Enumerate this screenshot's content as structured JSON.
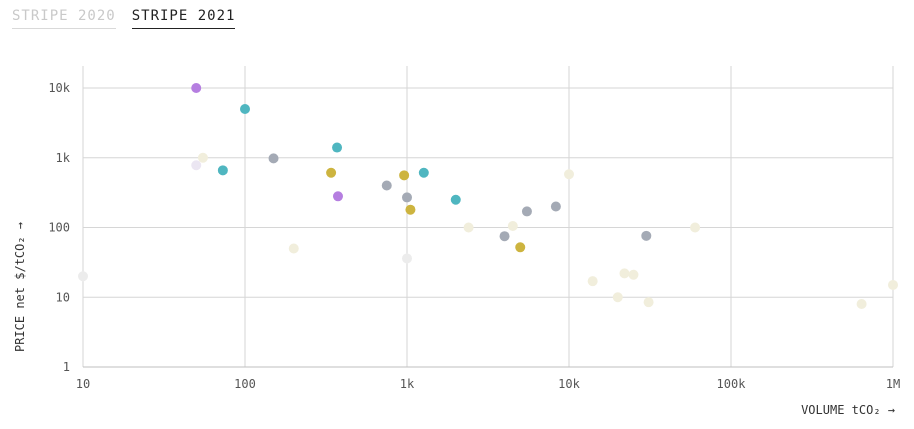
{
  "tabs": [
    {
      "label": "STRIPE 2020",
      "active": false
    },
    {
      "label": "STRIPE 2021",
      "active": true
    }
  ],
  "chart_data": {
    "type": "scatter",
    "x_scale": "log",
    "y_scale": "log",
    "xlim": [
      10,
      1000000
    ],
    "ylim": [
      1,
      20000
    ],
    "xticks": [
      10,
      100,
      1000,
      10000,
      100000,
      1000000
    ],
    "xtick_labels": [
      "10",
      "100",
      "1k",
      "10k",
      "100k",
      "1M"
    ],
    "yticks": [
      1,
      10,
      100,
      1000,
      10000
    ],
    "ytick_labels": [
      "1",
      "10",
      "100",
      "1k",
      "10k"
    ],
    "xlabel": "VOLUME tCO₂ →",
    "ylabel": "PRICE net $/tCO₂ →",
    "grid": true,
    "colors": {
      "purple": "#b57ee0",
      "teal": "#4fb6c0",
      "gray": "#a4aab5",
      "gold": "#cdb43f",
      "faded_cream": "#f1eedc",
      "faded_lavender": "#ebe6f2",
      "faded_gray": "#ececec"
    },
    "series": [
      {
        "color": "purple",
        "points": [
          [
            50,
            10000
          ],
          [
            375,
            280
          ]
        ]
      },
      {
        "color": "teal",
        "points": [
          [
            100,
            5000
          ],
          [
            73,
            660
          ],
          [
            370,
            1400
          ],
          [
            1270,
            610
          ],
          [
            2000,
            250
          ]
        ]
      },
      {
        "color": "gray",
        "points": [
          [
            150,
            980
          ],
          [
            750,
            400
          ],
          [
            1000,
            270
          ],
          [
            4000,
            75
          ],
          [
            5500,
            170
          ],
          [
            8300,
            200
          ],
          [
            30000,
            76
          ]
        ]
      },
      {
        "color": "gold",
        "points": [
          [
            340,
            610
          ],
          [
            960,
            560
          ],
          [
            1050,
            180
          ],
          [
            5000,
            52
          ]
        ]
      },
      {
        "color": "faded_cream",
        "points": [
          [
            55,
            1000
          ],
          [
            200,
            50
          ],
          [
            2400,
            100
          ],
          [
            4500,
            105
          ],
          [
            10000,
            580
          ],
          [
            14000,
            17
          ],
          [
            20000,
            10
          ],
          [
            22000,
            22
          ],
          [
            25000,
            21
          ],
          [
            31000,
            8.5
          ],
          [
            60000,
            100
          ],
          [
            640000,
            8
          ],
          [
            1000000,
            15
          ]
        ]
      },
      {
        "color": "faded_lavender",
        "points": [
          [
            50,
            780
          ]
        ]
      },
      {
        "color": "faded_gray",
        "points": [
          [
            10,
            20
          ],
          [
            1000,
            36
          ]
        ]
      }
    ]
  }
}
